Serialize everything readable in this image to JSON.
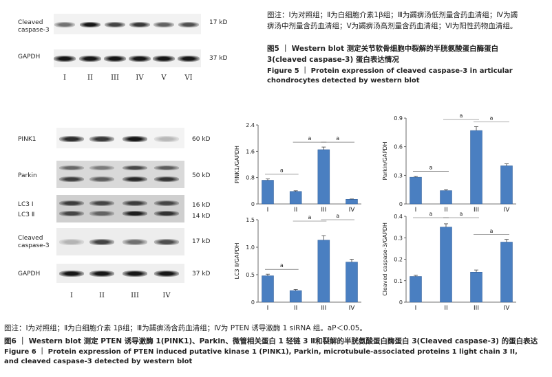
{
  "fig5": {
    "rows": [
      {
        "label_line1": "Cleaved",
        "label_line2": "caspase-3",
        "kd": "17 kD",
        "intensity": [
          0.55,
          0.95,
          0.75,
          0.8,
          0.62,
          0.7
        ]
      },
      {
        "label_line1": "GAPDH",
        "label_line2": "",
        "kd": "37 kD",
        "intensity": [
          0.95,
          0.95,
          0.95,
          0.95,
          0.95,
          0.95
        ]
      }
    ],
    "lanes": [
      "I",
      "II",
      "III",
      "IV",
      "V",
      "VI"
    ],
    "note": "图注：Ⅰ为对照组；Ⅱ为白细胞介素1β组；Ⅲ为蠲痹汤低剂量含药血清组；Ⅳ为蠲痹汤中剂量含药血清组；Ⅴ为蠲痹汤高剂量含药血清组；Ⅵ为阳性药物血清组。",
    "title_cn": "图5 ｜ Western blot 测定关节软骨细胞中裂解的半胱氨酸蛋白酶蛋白3(cleaved caspase-3) 蛋白表达情况",
    "title_en": "Figure 5 ｜ Protein expression of cleaved caspase-3 in articular chondrocytes detected by western blot"
  },
  "fig6": {
    "rows": [
      {
        "label_line1": "PINK1",
        "label_line2": "",
        "kd": "60 kD"
      },
      {
        "label_line1": "Parkin",
        "label_line2": "",
        "kd": "50 kD"
      },
      {
        "label_line1": "LC3 Ⅰ",
        "label_line2": "LC3 Ⅱ",
        "kd": "16 kD",
        "kd2": "14 kD"
      },
      {
        "label_line1": "Cleaved",
        "label_line2": "caspase-3",
        "kd": "17 kD"
      },
      {
        "label_line1": "GAPDH",
        "label_line2": "",
        "kd": "37 kD"
      }
    ],
    "lanes": [
      "I",
      "II",
      "III",
      "IV"
    ],
    "note": "图注：Ⅰ为对照组；Ⅱ为白细胞介素 1β组；Ⅲ为蠲痹汤含药血清组；Ⅳ为 PTEN 诱导激酶 1 siRNA 组。",
    "note_sig": "aP＜0.05。",
    "title_cn": "图6 ｜ Western blot 测定 PTEN 诱导激酶 1(PINK1)、Parkin、微管相关蛋白 1 轻链 3 Ⅱ和裂解的半胱氨酸蛋白酶蛋白 3(Cleaved caspase-3) 的蛋白表达",
    "title_en": "Figure 6 ｜ Protein expression of PTEN induced putative kinase 1 (PINK1), Parkin, microtubule-associated proteins 1 light chain 3 II, and cleaved caspase-3 detected by western blot"
  },
  "chart_data": [
    {
      "type": "bar",
      "ylabel": "PINK1/GAPDH",
      "categories": [
        "I",
        "II",
        "III",
        "IV"
      ],
      "values": [
        0.72,
        0.38,
        1.65,
        0.14
      ],
      "errors": [
        0.04,
        0.02,
        0.08,
        0.01
      ],
      "ylim": [
        0,
        2.4
      ],
      "yticks": [
        "0",
        "0.8",
        "1.6",
        "2.4"
      ],
      "sig": "a",
      "color": "#4a7fc1"
    },
    {
      "type": "bar",
      "ylabel": "Parkin/GAPDH",
      "categories": [
        "I",
        "II",
        "III",
        "IV"
      ],
      "values": [
        0.28,
        0.14,
        0.77,
        0.4
      ],
      "errors": [
        0.01,
        0.01,
        0.04,
        0.02
      ],
      "ylim": [
        0,
        0.9
      ],
      "yticks": [
        "0",
        "0.3",
        "0.6",
        "0.9"
      ],
      "sig": "a",
      "color": "#4a7fc1"
    },
    {
      "type": "bar",
      "ylabel": "LC3 Ⅱ/GAPDH",
      "categories": [
        "I",
        "II",
        "III",
        "IV"
      ],
      "values": [
        0.48,
        0.21,
        1.13,
        0.73
      ],
      "errors": [
        0.03,
        0.02,
        0.08,
        0.05
      ],
      "ylim": [
        0,
        1.5
      ],
      "yticks": [
        "0",
        "0.5",
        "1.0",
        "1.5"
      ],
      "sig": "a",
      "color": "#4a7fc1"
    },
    {
      "type": "bar",
      "ylabel": "Cleaved caspase-3/GAPDH",
      "categories": [
        "I",
        "II",
        "III",
        "IV"
      ],
      "values": [
        0.12,
        0.35,
        0.14,
        0.28
      ],
      "errors": [
        0.005,
        0.015,
        0.01,
        0.012
      ],
      "ylim": [
        0,
        0.4
      ],
      "yticks": [
        "0",
        "0.1",
        "0.2",
        "0.3",
        "0.4"
      ],
      "sig": "a",
      "color": "#4a7fc1"
    }
  ]
}
